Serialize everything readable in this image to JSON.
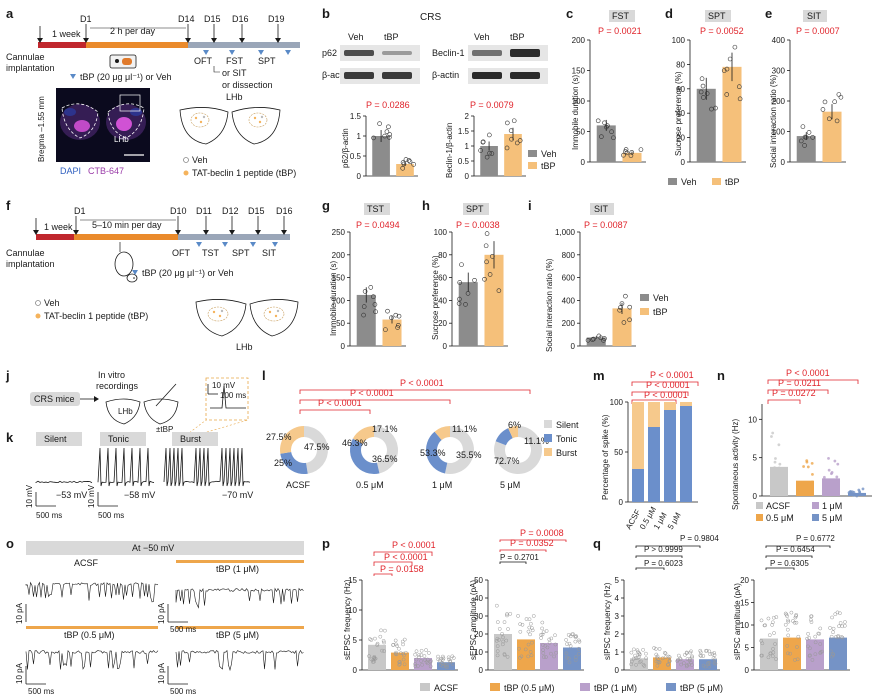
{
  "colors": {
    "veh": "#8c8c8c",
    "tbp": "#f5c07a",
    "acsf": "#c8c8c8",
    "tbp05": "#eea64b",
    "tbp1": "#b9a0cb",
    "tbp5": "#7593c6",
    "silent": "#d9d9d9",
    "tonic": "#6b8fcb",
    "burst": "#f6c98c",
    "red": "#e0242b"
  },
  "panels": [
    "a",
    "b",
    "c",
    "d",
    "e",
    "f",
    "g",
    "h",
    "i",
    "j",
    "k",
    "l",
    "m",
    "n",
    "o",
    "p",
    "q"
  ],
  "a": {
    "week": "1 week",
    "d1": "D1",
    "per_day": "2 h per day",
    "d14": "D14",
    "d15": "D15",
    "d16": "D16",
    "d19": "D19",
    "oft": "OFT",
    "fst": "FST",
    "spt": "SPT",
    "or_sit": "or SIT",
    "or_diss": "or dissection",
    "cannulae1": "Cannulae",
    "cannulae2": "implantation",
    "tbp_note": "tBP (20 μg μl⁻¹) or Veh",
    "bregma": "Bregma –1.55 mm",
    "lhb": "LHb",
    "lhb2": "LHb",
    "dapi": "DAPI",
    "ctb": "CTB-647",
    "veh": "Veh",
    "tat": "TAT-beclin 1 peptide (tBP)"
  },
  "b": {
    "title": "CRS",
    "veh1": "Veh",
    "tbp1": "tBP",
    "veh2": "Veh",
    "tbp2": "tBP",
    "p62": "p62",
    "bactin1": "β-actin",
    "beclin": "Beclin-1",
    "bactin2": "β-actin",
    "p1": "P = 0.0286",
    "p2": "P = 0.0079",
    "ylab1": "p62/β-actin",
    "ylab2": "Beclin-1/β-actin",
    "legend_veh": "Veh",
    "legend_tbp": "tBP"
  },
  "c": {
    "title": "FST",
    "p": "P = 0.0021",
    "ylab": "Immobile duration (s)"
  },
  "d": {
    "title": "SPT",
    "p": "P = 0.0052",
    "ylab": "Sucrose preference (%)",
    "veh": "Veh",
    "tbp": "tBP"
  },
  "e": {
    "title": "SIT",
    "p": "P = 0.0007",
    "ylab": "Social interaction ratio (%)"
  },
  "f": {
    "week": "1 week",
    "d1": "D1",
    "per_day": "5–10 min per day",
    "d10": "D10",
    "d11": "D11",
    "d12": "D12",
    "d15": "D15",
    "d16": "D16",
    "oft": "OFT",
    "tst": "TST",
    "spt": "SPT",
    "sit": "SIT",
    "cannulae1": "Cannulae",
    "cannulae2": "implantation",
    "tbp_note": "tBP (20 μg μl⁻¹) or Veh",
    "veh": "Veh",
    "tat": "TAT-beclin 1 peptide (tBP)",
    "lhb": "LHb"
  },
  "g": {
    "title": "TST",
    "p": "P = 0.0494",
    "ylab": "Immobile duration (s)"
  },
  "h": {
    "title": "SPT",
    "p": "P = 0.0038",
    "ylab": "Sucrose preference (%)"
  },
  "i": {
    "title": "SIT",
    "p": "P = 0.0087",
    "ylab": "Social interaction ratio (%)",
    "veh": "Veh",
    "tbp": "tBP"
  },
  "j": {
    "crs": "CRS mice",
    "rec1": "In vitro",
    "rec2": "recordings",
    "lhb": "LHb",
    "tbp": "±tBP",
    "mv": "10 mV",
    "ms": "100 ms"
  },
  "k": {
    "silent": "Silent",
    "tonic": "Tonic",
    "burst": "Burst",
    "v1": "−53 mV",
    "v2": "−58 mV",
    "v3": "−70 mV",
    "mv": "10 mV",
    "ms": "500 ms",
    "mv2": "10 mV",
    "ms2": "500 ms"
  },
  "l": {
    "p_top": "P < 0.0001",
    "p_mid": "P < 0.0001",
    "p_low": "P < 0.0001",
    "acsf": "ACSF",
    "c05": "0.5 μM",
    "c1": "1 μM",
    "c5": "5 μM",
    "acsf_b": "27.5%",
    "acsf_s": "47.5%",
    "acsf_t": "25%",
    "c05_s": "46.3%",
    "c05_b": "17.1%",
    "c05_t": "36.5%",
    "c1_s": "53.3%",
    "c1_b": "11.1%",
    "c1_t": "35.5%",
    "c5_s": "72.7%",
    "c5_b": "6%",
    "c5_t": "11.1%",
    "leg_silent": "Silent",
    "leg_tonic": "Tonic",
    "leg_burst": "Burst"
  },
  "m": {
    "p1": "P < 0.0001",
    "p2": "P < 0.0001",
    "p3": "P < 0.0001",
    "ylab": "Percentage of spike (%)",
    "x1": "ACSF",
    "x2": "0.5 μM",
    "x3": "1 μM",
    "x4": "5 μM"
  },
  "n": {
    "p1": "P < 0.0001",
    "p2": "P = 0.0211",
    "p3": "P = 0.0272",
    "ylab": "Spontaneous activity (Hz)",
    "acsf": "ACSF",
    "c05": "0.5 μM",
    "c1": "1 μM",
    "c5": "5 μM"
  },
  "o": {
    "title": "At −50 mV",
    "acsf": "ACSF",
    "t1": "tBP (1 μM)",
    "t05": "tBP (0.5 μM)",
    "t5": "tBP (5 μM)",
    "pa": "10 pA",
    "ms": "500 ms"
  },
  "p": {
    "a1": "P < 0.0001",
    "a2": "P < 0.0001",
    "a3": "P = 0.0158",
    "b1": "P = 0.0008",
    "b2": "P = 0.0352",
    "b3": "P = 0.2701",
    "ylab1": "sEPSC frequency (Hz)",
    "ylab2": "sEPSC amplitude (pA)"
  },
  "q": {
    "a1": "P = 0.9804",
    "a2": "P > 0.9999",
    "a3": "P = 0.6023",
    "b1": "P = 0.6772",
    "b2": "P = 0.6454",
    "b3": "P = 0.6305",
    "ylab1": "sIPSC frequency (Hz)",
    "ylab2": "sIPSC amplitude (pA)"
  },
  "legend": {
    "acsf": "ACSF",
    "t05": "tBP (0.5 μM)",
    "t1": "tBP (1 μM)",
    "t5": "tBP (5 μM)"
  },
  "chart_data": [
    {
      "panel": "c",
      "type": "bar",
      "title": "FST",
      "ylabel": "Immobile duration (s)",
      "ylim": [
        0,
        200
      ],
      "categories": [
        "Veh",
        "tBP"
      ],
      "values": [
        60,
        15
      ]
    },
    {
      "panel": "d",
      "type": "bar",
      "title": "SPT",
      "ylabel": "Sucrose preference (%)",
      "ylim": [
        0,
        100
      ],
      "categories": [
        "Veh",
        "tBP"
      ],
      "values": [
        60,
        78
      ]
    },
    {
      "panel": "e",
      "type": "bar",
      "title": "SIT",
      "ylabel": "Social interaction ratio (%)",
      "ylim": [
        0,
        400
      ],
      "categories": [
        "Veh",
        "tBP"
      ],
      "values": [
        85,
        165
      ]
    },
    {
      "panel": "g",
      "type": "bar",
      "title": "TST",
      "ylabel": "Immobile duration (s)",
      "ylim": [
        0,
        250
      ],
      "categories": [
        "Veh",
        "tBP"
      ],
      "values": [
        112,
        58
      ]
    },
    {
      "panel": "h",
      "type": "bar",
      "title": "SPT",
      "ylabel": "Sucrose preference (%)",
      "ylim": [
        0,
        100
      ],
      "categories": [
        "Veh",
        "tBP"
      ],
      "values": [
        56,
        80
      ]
    },
    {
      "panel": "i",
      "type": "bar",
      "title": "SIT",
      "ylabel": "Social interaction ratio (%)",
      "ylim": [
        0,
        1000
      ],
      "categories": [
        "Veh",
        "tBP"
      ],
      "values": [
        75,
        330
      ]
    },
    {
      "panel": "b1",
      "type": "bar",
      "ylabel": "p62/β-actin",
      "ylim": [
        0,
        1.5
      ],
      "categories": [
        "Veh",
        "tBP"
      ],
      "values": [
        1.0,
        0.3
      ]
    },
    {
      "panel": "b2",
      "type": "bar",
      "ylabel": "Beclin-1/β-actin",
      "ylim": [
        0,
        2.0
      ],
      "categories": [
        "Veh",
        "tBP"
      ],
      "values": [
        1.0,
        1.4
      ]
    },
    {
      "panel": "m",
      "type": "bar",
      "ylabel": "Percentage of spike (%)",
      "ylim": [
        0,
        100
      ],
      "categories": [
        "ACSF",
        "0.5 μM",
        "1 μM",
        "5 μM"
      ],
      "series": [
        {
          "name": "Tonic",
          "values": [
            33,
            75,
            92,
            96
          ]
        },
        {
          "name": "Burst",
          "values": [
            67,
            25,
            8,
            4
          ]
        }
      ]
    },
    {
      "panel": "n",
      "type": "bar",
      "ylabel": "Spontaneous activity (Hz)",
      "categories": [
        "ACSF",
        "0.5 μM",
        "1 μM",
        "5 μM"
      ],
      "values": [
        3.8,
        2.0,
        2.3,
        0.4
      ]
    },
    {
      "panel": "p1",
      "type": "bar",
      "ylabel": "sEPSC frequency (Hz)",
      "ylim": [
        0,
        15
      ],
      "categories": [
        "ACSF",
        "tBP (0.5 μM)",
        "tBP (1 μM)",
        "tBP (5 μM)"
      ],
      "values": [
        4.2,
        2.9,
        2.0,
        1.3
      ]
    },
    {
      "panel": "p2",
      "type": "bar",
      "ylabel": "sEPSC amplitude (pA)",
      "ylim": [
        0,
        50
      ],
      "categories": [
        "ACSF",
        "tBP (0.5 μM)",
        "tBP (1 μM)",
        "tBP (5 μM)"
      ],
      "values": [
        20,
        17,
        15,
        12.5
      ]
    },
    {
      "panel": "q1",
      "type": "bar",
      "ylabel": "sIPSC frequency (Hz)",
      "ylim": [
        0,
        5
      ],
      "categories": [
        "ACSF",
        "tBP (0.5 μM)",
        "tBP (1 μM)",
        "tBP (5 μM)"
      ],
      "values": [
        0.65,
        0.7,
        0.6,
        0.6
      ]
    },
    {
      "panel": "q2",
      "type": "bar",
      "ylabel": "sIPSC amplitude (pA)",
      "ylim": [
        0,
        20
      ],
      "categories": [
        "ACSF",
        "tBP (0.5 μM)",
        "tBP (1 μM)",
        "tBP (5 μM)"
      ],
      "values": [
        7.0,
        7.2,
        6.8,
        7.2
      ]
    },
    {
      "panel": "l",
      "type": "pie",
      "groups": [
        {
          "name": "ACSF",
          "silent": 47.5,
          "tonic": 25,
          "burst": 27.5
        },
        {
          "name": "0.5 μM",
          "silent": 46.3,
          "tonic": 36.5,
          "burst": 17.1
        },
        {
          "name": "1 μM",
          "silent": 53.3,
          "tonic": 35.5,
          "burst": 11.1
        },
        {
          "name": "5 μM",
          "silent": 72.7,
          "tonic": 11.1,
          "burst": 6
        }
      ]
    }
  ]
}
